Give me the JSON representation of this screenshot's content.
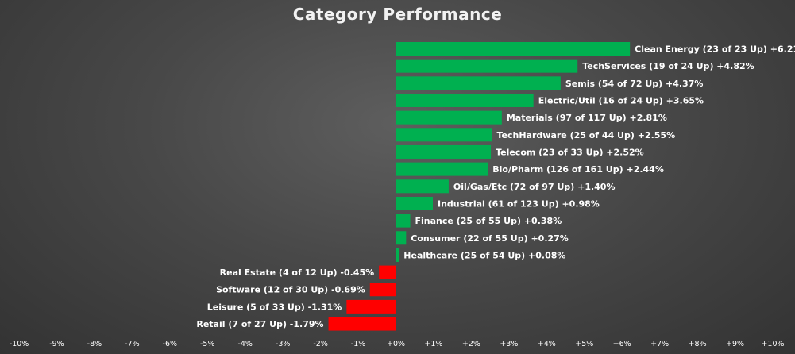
{
  "chart_data": {
    "type": "bar",
    "orientation": "horizontal",
    "title": "Category Performance",
    "xlabel": "",
    "ylabel": "",
    "xlim": [
      -10,
      10
    ],
    "grid": false,
    "legend": "none",
    "colors": {
      "positive": "#00b050",
      "negative": "#ff0000",
      "text": "#ffffff",
      "title": "#f2f2f2"
    },
    "x_ticks": [
      "-10%",
      "-9%",
      "-8%",
      "-7%",
      "-6%",
      "-5%",
      "-4%",
      "-3%",
      "-2%",
      "-1%",
      "+0%",
      "+1%",
      "+2%",
      "+3%",
      "+4%",
      "+5%",
      "+6%",
      "+7%",
      "+8%",
      "+9%",
      "+10%"
    ],
    "categories": [
      "Clean Energy (23 of 23 Up) +6.21%",
      "TechServices (19 of 24 Up) +4.82%",
      "Semis (54 of 72 Up) +4.37%",
      "Electric/Util (16 of 24 Up) +3.65%",
      "Materials (97 of 117 Up) +2.81%",
      "TechHardware (25 of 44 Up) +2.55%",
      "Telecom (23 of 33 Up) +2.52%",
      "Bio/Pharm (126 of 161 Up) +2.44%",
      "Oil/Gas/Etc (72 of 97 Up) +1.40%",
      "Industrial (61 of 123 Up) +0.98%",
      "Finance (25 of 55 Up) +0.38%",
      "Consumer (22 of 55 Up) +0.27%",
      "Healthcare (25 of 54 Up) +0.08%",
      "Real Estate (4 of 12 Up) -0.45%",
      "Software (12 of 30 Up) -0.69%",
      "Leisure (5 of 33 Up) -1.31%",
      "Retail (7 of 27 Up) -1.79%"
    ],
    "values": [
      6.21,
      4.82,
      4.37,
      3.65,
      2.81,
      2.55,
      2.52,
      2.44,
      1.4,
      0.98,
      0.38,
      0.27,
      0.08,
      -0.45,
      -0.69,
      -1.31,
      -1.79
    ]
  }
}
